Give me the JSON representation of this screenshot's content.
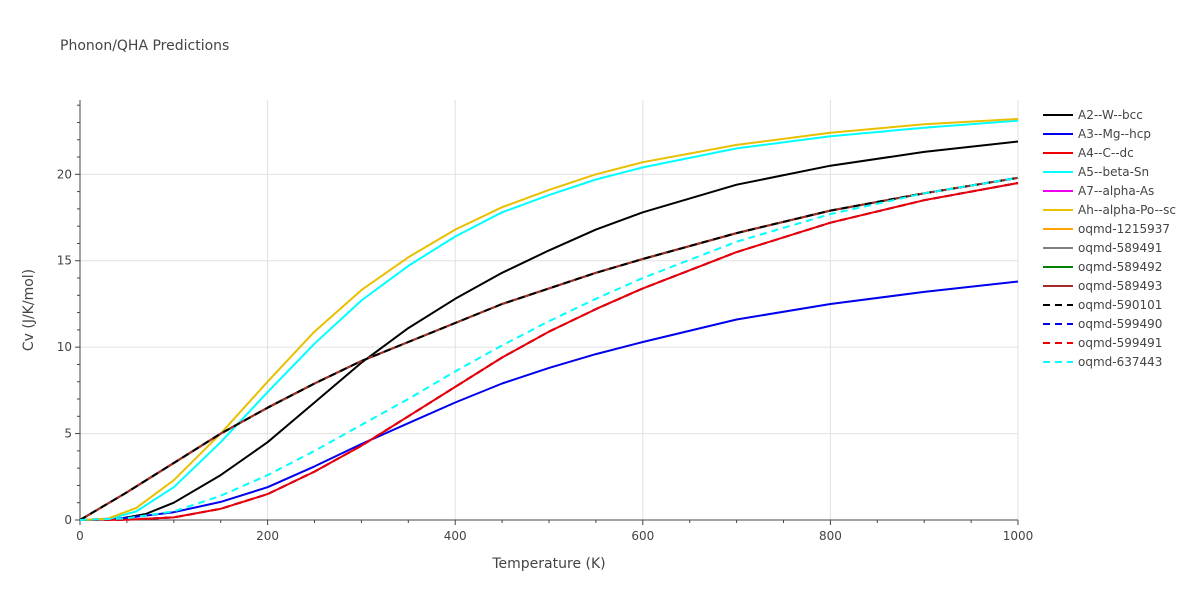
{
  "chart_data": {
    "type": "line",
    "title": "Phonon/QHA Predictions",
    "xlabel": "Temperature (K)",
    "ylabel": "Cv (J/K/mol)",
    "xlim": [
      0,
      1000
    ],
    "ylim": [
      0,
      24.3
    ],
    "x_ticks": [
      0,
      200,
      400,
      600,
      800,
      1000
    ],
    "y_ticks": [
      0,
      5,
      10,
      15,
      20
    ],
    "grid": true,
    "legend_position": "right",
    "series": [
      {
        "name": "A2--W--bcc",
        "color": "#000000",
        "dash": "solid",
        "x": [
          0,
          40,
          70,
          100,
          150,
          200,
          250,
          300,
          350,
          400,
          450,
          500,
          550,
          600,
          700,
          800,
          900,
          1000
        ],
        "y": [
          0,
          0.05,
          0.35,
          1.0,
          2.6,
          4.5,
          6.8,
          9.1,
          11.1,
          12.8,
          14.3,
          15.6,
          16.8,
          17.8,
          19.4,
          20.5,
          21.3,
          21.9
        ]
      },
      {
        "name": "A3--Mg--hcp",
        "color": "#0000ee",
        "dash": "solid",
        "x": [
          0,
          50,
          100,
          150,
          200,
          250,
          300,
          350,
          400,
          450,
          500,
          550,
          600,
          700,
          800,
          900,
          1000
        ],
        "y": [
          0,
          0.12,
          0.45,
          1.05,
          1.9,
          3.1,
          4.4,
          5.6,
          6.8,
          7.9,
          8.8,
          9.6,
          10.3,
          11.6,
          12.5,
          13.2,
          13.8
        ]
      },
      {
        "name": "A4--C--dc",
        "color": "#ee0000",
        "dash": "solid",
        "x": [
          0,
          50,
          100,
          150,
          200,
          250,
          300,
          350,
          400,
          450,
          500,
          550,
          600,
          700,
          800,
          900,
          1000
        ],
        "y": [
          0,
          0.02,
          0.15,
          0.65,
          1.5,
          2.8,
          4.3,
          6.0,
          7.7,
          9.4,
          10.9,
          12.2,
          13.4,
          15.5,
          17.2,
          18.5,
          19.5
        ]
      },
      {
        "name": "A5--beta-Sn",
        "color": "#00ffff",
        "dash": "solid",
        "x": [
          0,
          30,
          60,
          100,
          150,
          200,
          250,
          300,
          350,
          400,
          450,
          500,
          550,
          600,
          700,
          800,
          900,
          1000
        ],
        "y": [
          0,
          0.05,
          0.5,
          1.9,
          4.5,
          7.4,
          10.2,
          12.7,
          14.7,
          16.4,
          17.8,
          18.8,
          19.7,
          20.4,
          21.5,
          22.2,
          22.7,
          23.1
        ]
      },
      {
        "name": "A7--alpha-As",
        "color": "#ee00ee",
        "dash": "solid",
        "x": [
          0,
          50,
          100,
          150,
          200,
          250,
          300,
          350,
          400,
          450,
          500,
          550,
          600,
          700,
          800,
          900,
          1000
        ],
        "y": [
          0,
          1.6,
          3.3,
          5.0,
          6.5,
          7.9,
          9.2,
          10.3,
          11.4,
          12.5,
          13.4,
          14.3,
          15.1,
          16.6,
          17.9,
          18.9,
          19.8
        ]
      },
      {
        "name": "Ah--alpha-Po--sc",
        "color": "#e8c000",
        "dash": "solid",
        "x": [
          0,
          30,
          60,
          100,
          150,
          200,
          250,
          300,
          350,
          400,
          450,
          500,
          550,
          600,
          700,
          800,
          900,
          1000
        ],
        "y": [
          0,
          0.08,
          0.7,
          2.3,
          5.0,
          8.0,
          10.9,
          13.3,
          15.2,
          16.8,
          18.1,
          19.1,
          20.0,
          20.7,
          21.7,
          22.4,
          22.9,
          23.2
        ]
      },
      {
        "name": "oqmd-1215937",
        "color": "#ffa500",
        "dash": "solid",
        "x": [
          0,
          50,
          100,
          150,
          200,
          250,
          300,
          350,
          400,
          450,
          500,
          550,
          600,
          700,
          800,
          900,
          1000
        ],
        "y": [
          0,
          1.6,
          3.3,
          5.0,
          6.5,
          7.9,
          9.2,
          10.3,
          11.4,
          12.5,
          13.4,
          14.3,
          15.1,
          16.6,
          17.9,
          18.9,
          19.8
        ]
      },
      {
        "name": "oqmd-589491",
        "color": "#808080",
        "dash": "solid",
        "x": [
          0,
          50,
          100,
          150,
          200,
          250,
          300,
          350,
          400,
          450,
          500,
          550,
          600,
          700,
          800,
          900,
          1000
        ],
        "y": [
          0,
          1.6,
          3.3,
          5.0,
          6.5,
          7.9,
          9.2,
          10.3,
          11.4,
          12.5,
          13.4,
          14.3,
          15.1,
          16.6,
          17.9,
          18.9,
          19.8
        ]
      },
      {
        "name": "oqmd-589492",
        "color": "#008000",
        "dash": "solid",
        "x": [
          0,
          50,
          100,
          150,
          200,
          250,
          300,
          350,
          400,
          450,
          500,
          550,
          600,
          700,
          800,
          900,
          1000
        ],
        "y": [
          0,
          1.6,
          3.3,
          5.0,
          6.5,
          7.9,
          9.2,
          10.3,
          11.4,
          12.5,
          13.4,
          14.3,
          15.1,
          16.6,
          17.9,
          18.9,
          19.8
        ]
      },
      {
        "name": "oqmd-589493",
        "color": "#a52a2a",
        "dash": "solid",
        "x": [
          0,
          50,
          100,
          150,
          200,
          250,
          300,
          350,
          400,
          450,
          500,
          550,
          600,
          700,
          800,
          900,
          1000
        ],
        "y": [
          0,
          1.6,
          3.3,
          5.0,
          6.5,
          7.9,
          9.2,
          10.3,
          11.4,
          12.5,
          13.4,
          14.3,
          15.1,
          16.6,
          17.9,
          18.9,
          19.8
        ]
      },
      {
        "name": "oqmd-590101",
        "color": "#000000",
        "dash": "dash",
        "x": [
          0,
          50,
          100,
          150,
          200,
          250,
          300,
          350,
          400,
          450,
          500,
          550,
          600,
          700,
          800,
          900,
          1000
        ],
        "y": [
          0,
          1.6,
          3.3,
          5.0,
          6.5,
          7.9,
          9.2,
          10.3,
          11.4,
          12.5,
          13.4,
          14.3,
          15.1,
          16.6,
          17.9,
          18.9,
          19.8
        ]
      },
      {
        "name": "oqmd-599490",
        "color": "#0000ee",
        "dash": "dash",
        "x": [
          0,
          50,
          100,
          150,
          200,
          250,
          300,
          350,
          400,
          450,
          500,
          550,
          600,
          700,
          800,
          900,
          1000
        ],
        "y": [
          0,
          0.02,
          0.15,
          0.65,
          1.5,
          2.8,
          4.3,
          6.0,
          7.7,
          9.4,
          10.9,
          12.2,
          13.4,
          15.5,
          17.2,
          18.5,
          19.5
        ]
      },
      {
        "name": "oqmd-599491",
        "color": "#ee0000",
        "dash": "dash",
        "x": [
          0,
          50,
          100,
          150,
          200,
          250,
          300,
          350,
          400,
          450,
          500,
          550,
          600,
          700,
          800,
          900,
          1000
        ],
        "y": [
          0,
          0.02,
          0.15,
          0.65,
          1.5,
          2.8,
          4.3,
          6.0,
          7.7,
          9.4,
          10.9,
          12.2,
          13.4,
          15.5,
          17.2,
          18.5,
          19.5
        ]
      },
      {
        "name": "oqmd-637443",
        "color": "#00ffff",
        "dash": "dash",
        "x": [
          0,
          50,
          100,
          150,
          200,
          250,
          300,
          350,
          400,
          450,
          500,
          550,
          600,
          700,
          800,
          900,
          1000
        ],
        "y": [
          0,
          0.1,
          0.5,
          1.4,
          2.6,
          4.0,
          5.5,
          7.0,
          8.6,
          10.1,
          11.5,
          12.8,
          14.0,
          16.1,
          17.7,
          18.9,
          19.8
        ]
      }
    ]
  }
}
